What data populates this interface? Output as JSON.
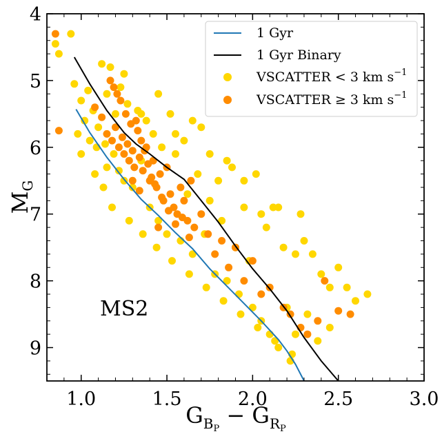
{
  "chart_data": {
    "type": "scatter",
    "title": "",
    "xlabel": "G_BP - G_RP",
    "ylabel": "M_G",
    "xlim": [
      0.8,
      3.0
    ],
    "ylim": [
      9.5,
      4.0
    ],
    "y_inverted": true,
    "x_ticks": [
      "1.0",
      "1.5",
      "2.0",
      "2.5",
      "3.0"
    ],
    "y_ticks": [
      "4",
      "5",
      "6",
      "7",
      "8",
      "9"
    ],
    "grid": false,
    "legend_position": "top-right",
    "annotation": "MS2",
    "colors": {
      "single": "#1f77b4",
      "binary": "#000000",
      "low_vscatter": "#ffd700",
      "high_vscatter": "#ff8c00"
    },
    "series": [
      {
        "name": "1 Gyr",
        "kind": "line",
        "color": "#1f77b4",
        "x": [
          0.97,
          1.05,
          1.15,
          1.25,
          1.35,
          1.45,
          1.55,
          1.65,
          1.75,
          1.85,
          1.95,
          2.05,
          2.15,
          2.2,
          2.25,
          2.3
        ],
        "y": [
          5.43,
          5.78,
          6.15,
          6.48,
          6.78,
          7.02,
          7.28,
          7.52,
          7.82,
          8.08,
          8.34,
          8.6,
          8.88,
          9.05,
          9.25,
          9.5
        ]
      },
      {
        "name": "1 Gyr Binary",
        "kind": "line",
        "color": "#000000",
        "x": [
          0.96,
          1.05,
          1.15,
          1.25,
          1.32,
          1.4,
          1.5,
          1.6,
          1.7,
          1.8,
          1.9,
          2.0,
          2.1,
          2.2,
          2.3,
          2.4,
          2.5
        ],
        "y": [
          4.65,
          5.05,
          5.45,
          5.78,
          5.95,
          6.1,
          6.3,
          6.48,
          6.8,
          7.12,
          7.48,
          7.82,
          8.12,
          8.45,
          8.85,
          9.2,
          9.5
        ]
      },
      {
        "name": "VSCATTER < 3 km s^-1",
        "kind": "scatter",
        "color": "#ffd700",
        "x": [
          0.85,
          0.87,
          0.94,
          0.96,
          0.98,
          1.0,
          1.02,
          1.04,
          1.05,
          1.07,
          1.09,
          1.1,
          1.12,
          1.14,
          1.15,
          1.17,
          1.19,
          1.2,
          1.22,
          1.23,
          1.25,
          1.27,
          1.3,
          1.33,
          1.35,
          1.38,
          1.4,
          1.42,
          1.45,
          1.47,
          1.5,
          1.52,
          1.55,
          1.58,
          1.6,
          1.62,
          1.65,
          1.68,
          1.7,
          1.72,
          1.75,
          1.78,
          1.8,
          1.82,
          1.85,
          1.88,
          1.9,
          1.92,
          1.95,
          1.98,
          2.0,
          2.02,
          2.05,
          2.08,
          2.1,
          2.12,
          2.15,
          2.18,
          2.2,
          2.22,
          2.25,
          2.28,
          2.3,
          2.32,
          2.35,
          2.38,
          2.4,
          2.45,
          2.5,
          2.55,
          2.6,
          2.67,
          1.0,
          1.08,
          1.13,
          1.18,
          1.28,
          1.36,
          1.44,
          1.53,
          1.63,
          1.73,
          1.83,
          1.93,
          2.03,
          2.13,
          2.23,
          1.15,
          1.35,
          1.55,
          1.75,
          1.95,
          2.15,
          1.25,
          1.45,
          1.65,
          1.85,
          2.05,
          2.25,
          2.45
        ],
        "y": [
          4.45,
          4.6,
          4.3,
          5.05,
          5.8,
          5.3,
          5.6,
          5.15,
          5.9,
          5.45,
          6.0,
          5.7,
          4.75,
          5.95,
          6.3,
          4.8,
          6.1,
          5.5,
          6.35,
          5.1,
          6.5,
          5.35,
          6.6,
          5.45,
          6.2,
          5.6,
          6.9,
          5.8,
          7.1,
          6.0,
          7.3,
          5.5,
          6.1,
          7.4,
          5.9,
          6.7,
          7.6,
          6.4,
          5.7,
          7.3,
          6.8,
          7.9,
          6.5,
          7.1,
          8.0,
          6.3,
          7.5,
          8.2,
          6.9,
          7.7,
          8.4,
          6.4,
          8.6,
          7.2,
          8.8,
          6.9,
          9.0,
          7.5,
          8.4,
          9.2,
          8.8,
          7.0,
          7.4,
          8.5,
          7.6,
          8.9,
          7.9,
          8.7,
          7.8,
          8.1,
          8.3,
          8.2,
          6.1,
          6.4,
          6.6,
          6.9,
          7.1,
          7.3,
          7.5,
          7.7,
          7.9,
          8.1,
          8.3,
          8.5,
          8.7,
          8.9,
          9.1,
          5.2,
          5.5,
          5.8,
          6.1,
          6.5,
          6.9,
          4.9,
          5.2,
          5.6,
          6.2,
          7.0,
          7.6,
          8.1
        ]
      },
      {
        "name": "VSCATTER ≥ 3 km s^-1",
        "kind": "scatter",
        "color": "#ff8c00",
        "x": [
          0.85,
          0.87,
          1.08,
          1.12,
          1.15,
          1.18,
          1.2,
          1.22,
          1.24,
          1.25,
          1.27,
          1.28,
          1.3,
          1.31,
          1.33,
          1.34,
          1.36,
          1.38,
          1.4,
          1.42,
          1.44,
          1.46,
          1.48,
          1.5,
          1.52,
          1.54,
          1.56,
          1.58,
          1.6,
          1.62,
          1.64,
          1.66,
          1.7,
          1.74,
          1.78,
          1.82,
          1.86,
          1.9,
          1.95,
          2.0,
          2.05,
          2.1,
          2.18,
          2.22,
          2.28,
          2.32,
          2.38,
          2.42,
          2.5,
          2.57,
          1.26,
          1.29,
          1.32,
          1.35,
          1.37,
          1.39,
          1.41,
          1.43,
          1.47,
          1.51,
          1.55,
          1.59,
          1.63,
          1.23,
          1.21,
          1.19,
          1.17,
          1.3,
          1.34,
          1.45
        ],
        "y": [
          4.3,
          5.75,
          5.4,
          5.55,
          5.8,
          5.9,
          5.7,
          6.0,
          5.85,
          6.1,
          5.95,
          6.2,
          6.05,
          6.3,
          5.75,
          6.15,
          6.35,
          6.0,
          6.5,
          6.2,
          6.6,
          6.4,
          6.8,
          6.3,
          6.7,
          6.9,
          7.0,
          6.6,
          6.8,
          7.1,
          6.5,
          7.2,
          7.0,
          7.3,
          7.6,
          7.4,
          7.8,
          7.5,
          8.0,
          7.7,
          8.2,
          8.1,
          8.4,
          8.5,
          8.7,
          8.8,
          8.6,
          8.0,
          8.45,
          8.5,
          5.5,
          5.65,
          5.6,
          5.9,
          6.05,
          6.25,
          6.45,
          6.55,
          6.75,
          6.95,
          7.15,
          7.05,
          7.35,
          5.3,
          5.2,
          5.1,
          5.0,
          6.5,
          6.65,
          7.2
        ]
      }
    ]
  },
  "legend": {
    "items": [
      {
        "label": "1 Gyr",
        "sup": ""
      },
      {
        "label": "1 Gyr Binary",
        "sup": ""
      },
      {
        "label": "VSCATTER < 3 km s",
        "sup": "−1"
      },
      {
        "label": "VSCATTER ≥ 3 km s",
        "sup": "−1"
      }
    ]
  },
  "axes": {
    "ylabel_main": "M",
    "ylabel_sub": "G",
    "xlabel_a": "G",
    "xlabel_a_sub": "B",
    "xlabel_a_subsub": "P",
    "xlabel_minus": " − ",
    "xlabel_b": "G",
    "xlabel_b_sub": "R",
    "xlabel_b_subsub": "P"
  }
}
